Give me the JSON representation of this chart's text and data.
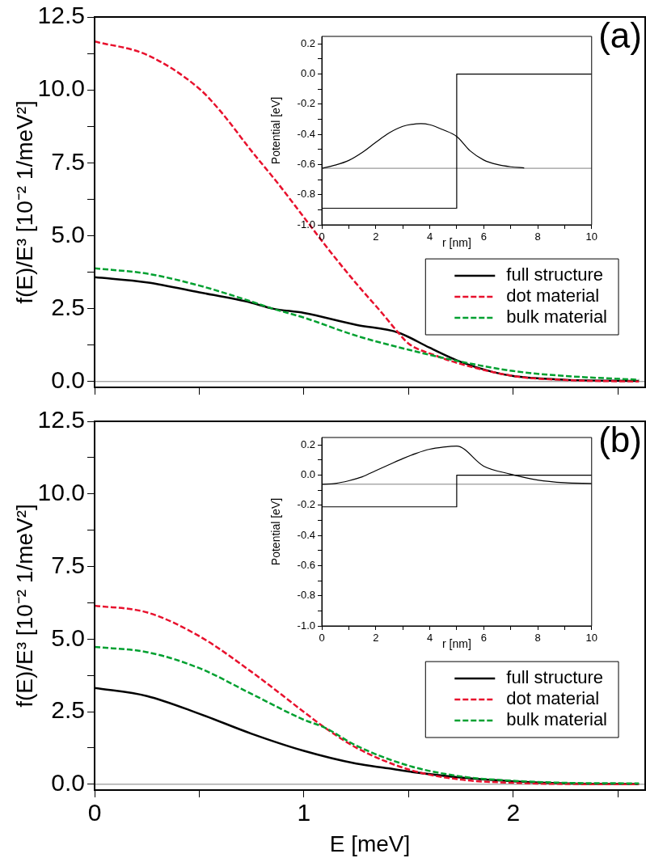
{
  "chart_data": [
    {
      "type": "line",
      "ylabel": "f(E)/E³ [10⁻² 1/meV²]",
      "annotations": [
        "(a)"
      ],
      "xlim": [
        0,
        2.63
      ],
      "ylim": [
        -0.2,
        12.5
      ],
      "xticks": [
        0,
        {
          "value": 0.5,
          "label": null
        },
        1,
        {
          "value": 1.5,
          "label": null
        },
        2,
        {
          "value": 2.5,
          "label": null
        }
      ],
      "yticks": [
        {
          "value": 0,
          "label": "0.0"
        },
        {
          "value": 1.25,
          "label": null
        },
        2.5,
        {
          "value": 3.75,
          "label": null
        },
        {
          "value": 5,
          "label": "5.0"
        },
        {
          "value": 6.25,
          "label": null
        },
        7.5,
        {
          "value": 8.75,
          "label": null
        },
        {
          "value": 10,
          "label": "10.0"
        },
        {
          "value": 11.25,
          "label": null
        },
        12.5
      ],
      "tick_labels": "y",
      "grid": false,
      "legend": "bottom right",
      "ref_lines": [
        {
          "axis": "y",
          "value": 0,
          "color": "#808080"
        }
      ],
      "series": [
        {
          "name": "full structure",
          "color": "#000000",
          "line_style": "solid",
          "x": [
            0,
            0.25,
            0.5,
            0.75,
            0.85,
            1,
            1.25,
            1.45,
            1.6,
            1.75,
            1.9,
            2,
            2.25,
            2.6
          ],
          "values": [
            3.58,
            3.4,
            3.06,
            2.7,
            2.5,
            2.35,
            1.94,
            1.68,
            1.16,
            0.67,
            0.33,
            0.19,
            0.06,
            0.02
          ]
        },
        {
          "name": "dot material",
          "color": "#e8112d",
          "line_style": "dashed",
          "x": [
            0,
            0.25,
            0.5,
            0.6,
            0.75,
            0.875,
            1,
            1.125,
            1.25,
            1.375,
            1.45,
            1.5,
            1.625,
            1.75,
            2,
            2.25,
            2.6
          ],
          "values": [
            11.66,
            11.2,
            10.04,
            9.28,
            7.9,
            6.8,
            5.63,
            4.46,
            3.36,
            2.33,
            1.68,
            1.3,
            0.9,
            0.6,
            0.19,
            0.05,
            0
          ]
        },
        {
          "name": "bulk material",
          "color": "#00a030",
          "line_style": "dashed",
          "x": [
            0,
            0.25,
            0.5,
            0.75,
            0.85,
            1,
            1.25,
            1.5,
            1.71,
            2,
            2.25,
            2.6
          ],
          "values": [
            3.88,
            3.7,
            3.29,
            2.74,
            2.5,
            2.19,
            1.57,
            1.09,
            0.74,
            0.36,
            0.19,
            0.06
          ]
        }
      ]
    },
    {
      "type": "line",
      "xlabel": "r [nm]",
      "ylabel": "Potential [eV]",
      "xlim": [
        0,
        10
      ],
      "ylim": [
        -1,
        0.25
      ],
      "xticks": [
        0,
        {
          "value": 1,
          "label": null
        },
        2,
        {
          "value": 3,
          "label": null
        },
        4,
        {
          "value": 5,
          "label": null
        },
        6,
        {
          "value": 7,
          "label": null
        },
        8,
        {
          "value": 9,
          "label": null
        },
        10
      ],
      "yticks": [
        {
          "value": -1,
          "label": "-1.0"
        },
        {
          "value": -0.9,
          "label": null
        },
        -0.8,
        {
          "value": -0.7,
          "label": null
        },
        -0.6,
        {
          "value": -0.5,
          "label": null
        },
        -0.4,
        {
          "value": -0.3,
          "label": null
        },
        -0.2,
        {
          "value": -0.1,
          "label": null
        },
        {
          "value": 0,
          "label": "0.0"
        },
        {
          "value": 0.1,
          "label": null
        },
        0.2
      ],
      "grid": false,
      "ref_lines": [
        {
          "axis": "y",
          "value": -0.625,
          "color": "#808080"
        }
      ],
      "series": [
        {
          "type": "step",
          "color": "#000000",
          "line_style": "solid",
          "x": [
            0,
            5,
            10
          ],
          "values": [
            -0.89,
            0,
            0
          ]
        },
        {
          "color": "#000000",
          "line_style": "solid",
          "x": [
            0,
            0.5,
            1,
            1.5,
            2,
            2.5,
            3,
            3.5,
            3.67,
            4,
            4.5,
            5,
            5.5,
            6,
            6.5,
            7,
            7.5
          ],
          "values": [
            -0.625,
            -0.604,
            -0.573,
            -0.52,
            -0.453,
            -0.39,
            -0.347,
            -0.33,
            -0.329,
            -0.336,
            -0.37,
            -0.414,
            -0.51,
            -0.57,
            -0.6,
            -0.615,
            -0.622
          ]
        }
      ]
    },
    {
      "type": "line",
      "xlabel": "E [meV]",
      "ylabel": "f(E)/E³ [10⁻² 1/meV²]",
      "annotations": [
        "(b)"
      ],
      "xlim": [
        0,
        2.63
      ],
      "ylim": [
        -0.2,
        12.5
      ],
      "xticks": [
        0,
        {
          "value": 0.5,
          "label": null
        },
        1,
        {
          "value": 1.5,
          "label": null
        },
        2,
        {
          "value": 2.5,
          "label": null
        }
      ],
      "yticks": [
        {
          "value": 0,
          "label": "0.0"
        },
        {
          "value": 1.25,
          "label": null
        },
        2.5,
        {
          "value": 3.75,
          "label": null
        },
        {
          "value": 5,
          "label": "5.0"
        },
        {
          "value": 6.25,
          "label": null
        },
        7.5,
        {
          "value": 8.75,
          "label": null
        },
        {
          "value": 10,
          "label": "10.0"
        },
        {
          "value": 11.25,
          "label": null
        },
        12.5
      ],
      "grid": false,
      "legend": "bottom right",
      "ref_lines": [
        {
          "axis": "y",
          "value": 0,
          "color": "#808080"
        }
      ],
      "series": [
        {
          "name": "full structure",
          "color": "#000000",
          "line_style": "solid",
          "x": [
            0,
            0.25,
            0.5,
            0.75,
            1,
            1.25,
            1.4,
            1.5,
            1.75,
            2,
            2.25,
            2.6
          ],
          "values": [
            3.32,
            3.04,
            2.43,
            1.74,
            1.15,
            0.71,
            0.55,
            0.44,
            0.23,
            0.1,
            0.03,
            0.01
          ]
        },
        {
          "name": "dot material",
          "color": "#e8112d",
          "line_style": "dashed",
          "x": [
            0,
            0.25,
            0.5,
            0.75,
            1,
            1.1,
            1.25,
            1.5,
            1.75,
            2,
            2.25,
            2.6
          ],
          "values": [
            6.15,
            5.92,
            5.1,
            3.87,
            2.49,
            1.95,
            1.26,
            0.51,
            0.16,
            0.05,
            0.01,
            0
          ]
        },
        {
          "name": "bulk material",
          "color": "#00a030",
          "line_style": "dashed",
          "x": [
            0,
            0.25,
            0.5,
            0.75,
            1,
            1.1,
            1.25,
            1.5,
            1.75,
            2,
            2.25,
            2.6
          ],
          "values": [
            4.73,
            4.55,
            4.0,
            3.11,
            2.22,
            1.95,
            1.33,
            0.64,
            0.27,
            0.12,
            0.05,
            0.03
          ]
        }
      ]
    },
    {
      "type": "line",
      "xlabel": "r [nm]",
      "ylabel": "Potential [eV]",
      "xlim": [
        0,
        10
      ],
      "ylim": [
        -1,
        0.25
      ],
      "xticks": [
        0,
        {
          "value": 1,
          "label": null
        },
        2,
        {
          "value": 3,
          "label": null
        },
        4,
        {
          "value": 5,
          "label": null
        },
        6,
        {
          "value": 7,
          "label": null
        },
        8,
        {
          "value": 9,
          "label": null
        },
        10
      ],
      "yticks": [
        {
          "value": -1,
          "label": "-1.0"
        },
        {
          "value": -0.9,
          "label": null
        },
        -0.8,
        {
          "value": -0.7,
          "label": null
        },
        -0.6,
        {
          "value": -0.5,
          "label": null
        },
        -0.4,
        {
          "value": -0.3,
          "label": null
        },
        -0.2,
        {
          "value": -0.1,
          "label": null
        },
        {
          "value": 0,
          "label": "0.0"
        },
        {
          "value": 0.1,
          "label": null
        },
        0.2
      ],
      "grid": false,
      "ref_lines": [
        {
          "axis": "y",
          "value": -0.06,
          "color": "#808080"
        }
      ],
      "series": [
        {
          "type": "step",
          "color": "#000000",
          "line_style": "solid",
          "x": [
            0,
            5,
            10
          ],
          "values": [
            -0.21,
            0,
            0
          ]
        },
        {
          "color": "#000000",
          "line_style": "solid",
          "x": [
            0,
            0.5,
            1,
            1.5,
            2,
            2.5,
            3,
            3.5,
            4,
            4.5,
            5,
            6,
            7,
            8,
            9,
            10
          ],
          "values": [
            -0.06,
            -0.055,
            -0.037,
            -0.011,
            0.03,
            0.07,
            0.11,
            0.145,
            0.172,
            0.186,
            0.193,
            0.06,
            0.007,
            -0.032,
            -0.05,
            -0.055
          ]
        }
      ]
    }
  ]
}
